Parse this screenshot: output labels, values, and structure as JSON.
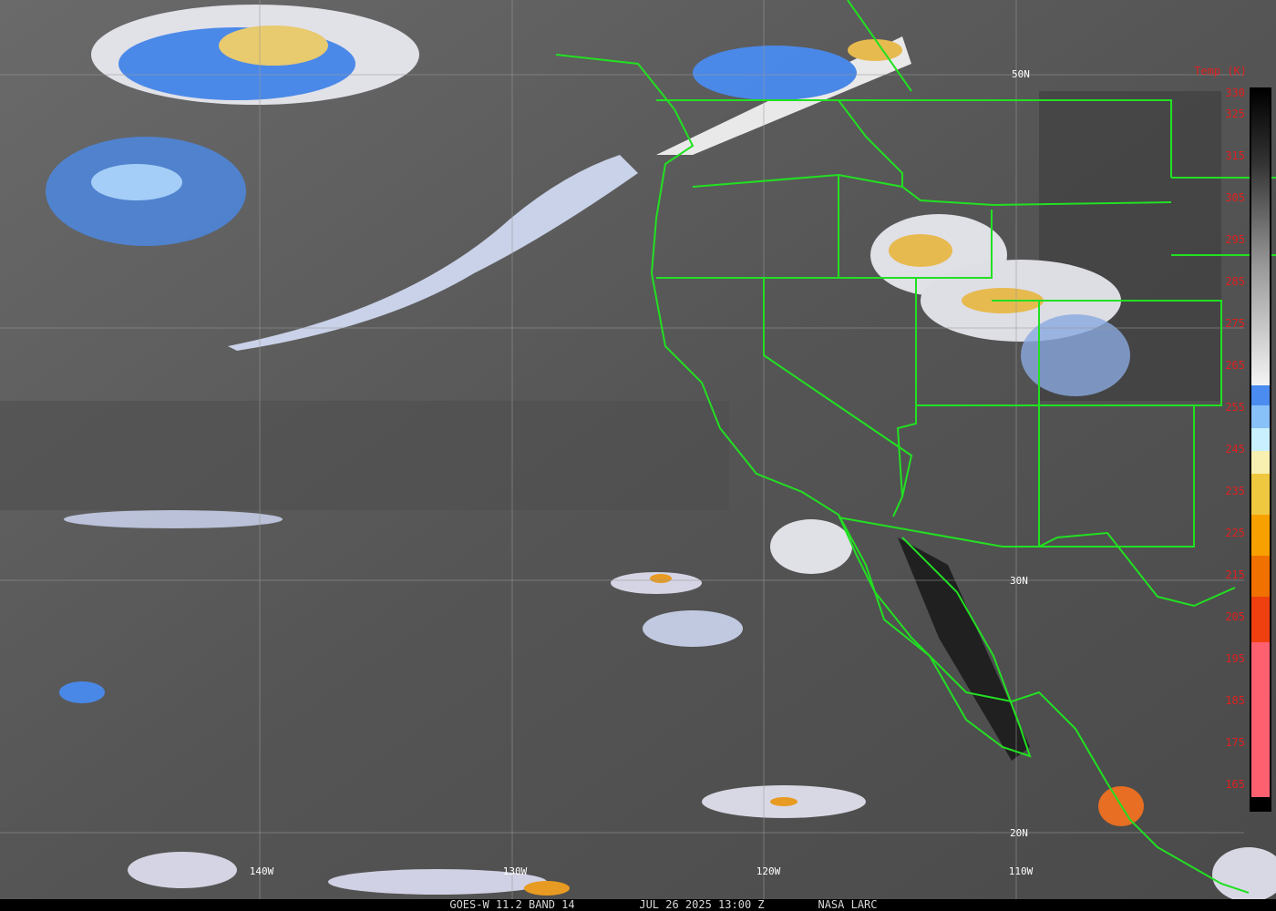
{
  "map": {
    "latitude_labels": [
      "50N",
      "30N",
      "20N"
    ],
    "longitude_labels": [
      "140W",
      "130W",
      "120W",
      "110W"
    ],
    "colorbar": {
      "title": "Temp (K)",
      "ticks": [
        330,
        325,
        315,
        305,
        295,
        285,
        275,
        265,
        255,
        245,
        235,
        225,
        215,
        205,
        195,
        185,
        175,
        165
      ]
    },
    "footer": [
      "GOES-W 11.2 BAND 14",
      "JUL 26 2025 13:00 Z",
      "NASA LARC"
    ]
  }
}
